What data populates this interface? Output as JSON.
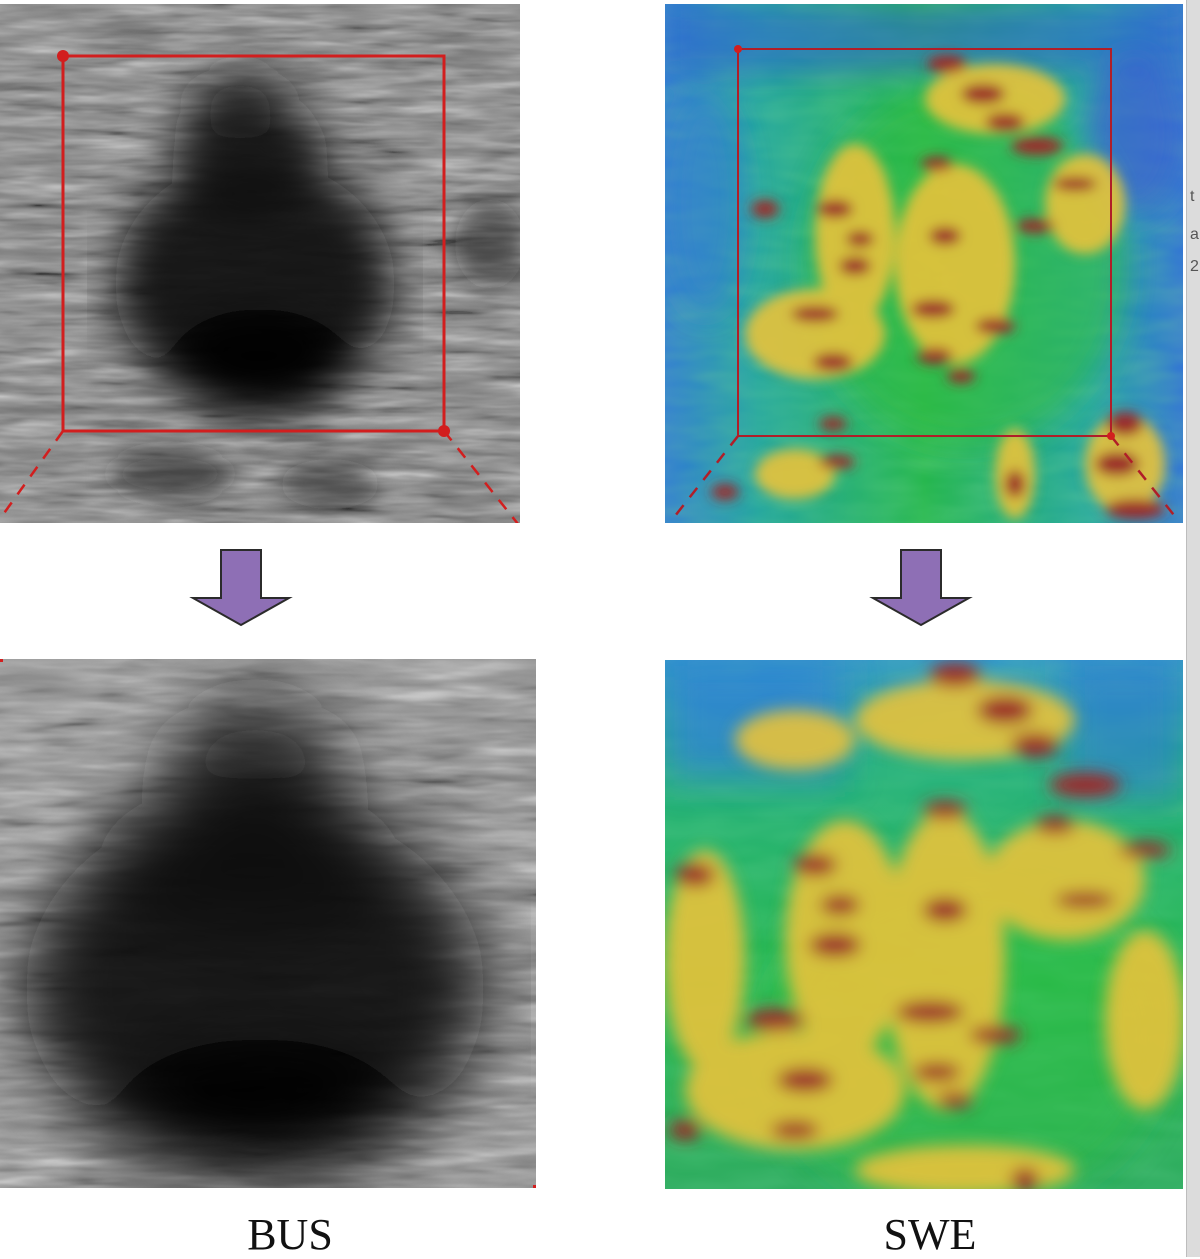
{
  "captions": {
    "bus": "BUS",
    "swe": "SWE"
  },
  "colors": {
    "roi_box": "#d21e1e",
    "arrow_fill": "#8e6fb5",
    "arrow_stroke": "#2b2b2b",
    "swe_blue": "#2e6fd8",
    "swe_green": "#22b54a",
    "swe_yellow": "#e8c23a",
    "swe_red": "#9c2a2a",
    "bus_dark": "#0c0c0c",
    "bus_light": "#9a9a9a"
  },
  "icons": {
    "down_arrow": "down-arrow-icon"
  },
  "edge_glyphs": [
    "t",
    "a",
    "2"
  ]
}
